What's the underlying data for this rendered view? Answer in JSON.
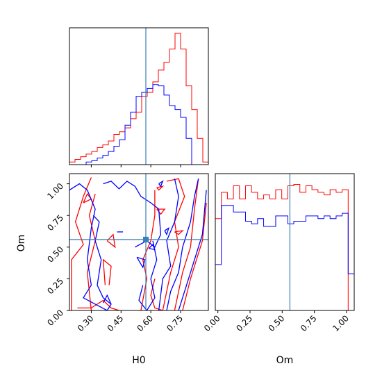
{
  "chart_data": {
    "type": "corner",
    "parameters": [
      "H0",
      "Om"
    ],
    "truths": {
      "H0": 0.575,
      "Om": 0.56
    },
    "truth_color": "#3a7fb5",
    "series": [
      {
        "color": "#ff0000"
      },
      {
        "color": "#0000ff"
      }
    ],
    "hist_H0": {
      "range": [
        0.19,
        0.89
      ],
      "ticks": [
        0.3,
        0.45,
        0.6,
        0.75
      ],
      "red": [
        0.02,
        0.04,
        0.06,
        0.08,
        0.1,
        0.13,
        0.15,
        0.18,
        0.23,
        0.25,
        0.28,
        0.35,
        0.4,
        0.52,
        0.55,
        0.63,
        0.72,
        0.78,
        0.88,
        1.0,
        0.88,
        0.6,
        0.42,
        0.2,
        0.02
      ],
      "blue": [
        0.0,
        0.0,
        0.0,
        0.02,
        0.03,
        0.05,
        0.07,
        0.1,
        0.14,
        0.19,
        0.3,
        0.4,
        0.52,
        0.55,
        0.58,
        0.61,
        0.6,
        0.53,
        0.45,
        0.42,
        0.36,
        0.2,
        0.0,
        0.0,
        0.0
      ]
    },
    "hist_Om": {
      "range": [
        -0.02,
        1.06
      ],
      "ticks": [
        0.0,
        0.25,
        0.5,
        0.75,
        1.0
      ],
      "tick_labels": [
        "0.00",
        "0.25",
        "0.50",
        "0.75",
        "1.00"
      ],
      "red": [
        0.7,
        0.9,
        0.85,
        0.95,
        0.85,
        0.95,
        0.9,
        0.85,
        0.88,
        0.85,
        0.92,
        0.85,
        0.95,
        0.96,
        0.9,
        0.95,
        0.92,
        0.9,
        0.88,
        0.92,
        0.9,
        0.92,
        0.0
      ],
      "blue": [
        0.35,
        0.8,
        0.8,
        0.75,
        0.75,
        0.68,
        0.66,
        0.7,
        0.64,
        0.64,
        0.72,
        0.72,
        0.66,
        0.68,
        0.68,
        0.72,
        0.72,
        0.7,
        0.72,
        0.7,
        0.72,
        0.74,
        0.28
      ]
    },
    "scatter_2d": {
      "xlim": [
        0.19,
        0.89
      ],
      "ylim": [
        0.0,
        1.08
      ],
      "xticks": [
        0.3,
        0.45,
        0.6,
        0.75
      ],
      "xtick_labels": [
        "0.30",
        "0.45",
        "0.60",
        "0.75"
      ],
      "yticks": [
        0.0,
        0.25,
        0.5,
        0.75,
        1.0
      ],
      "ytick_labels": [
        "0.00",
        "0.25",
        "0.50",
        "0.75",
        "1.00"
      ],
      "xlabel": "H0",
      "ylabel": "Om"
    },
    "contours": {
      "red": [
        [
          [
            0.2,
            0.0
          ],
          [
            0.2,
            0.4
          ],
          [
            0.26,
            0.52
          ],
          [
            0.22,
            0.7
          ],
          [
            0.26,
            0.9
          ],
          [
            0.3,
            1.05
          ]
        ],
        [
          [
            0.3,
            0.0
          ],
          [
            0.28,
            0.3
          ],
          [
            0.32,
            0.55
          ],
          [
            0.29,
            0.75
          ],
          [
            0.32,
            0.92
          ]
        ],
        [
          [
            0.23,
            0.02
          ],
          [
            0.3,
            0.02
          ],
          [
            0.36,
            0.08
          ],
          [
            0.4,
            0.02
          ],
          [
            0.44,
            0.0
          ]
        ],
        [
          [
            0.26,
            0.85
          ],
          [
            0.3,
            0.88
          ],
          [
            0.28,
            0.92
          ],
          [
            0.26,
            0.85
          ]
        ],
        [
          [
            0.37,
            0.2
          ],
          [
            0.36,
            0.4
          ],
          [
            0.4,
            0.35
          ],
          [
            0.39,
            0.2
          ]
        ],
        [
          [
            0.38,
            0.55
          ],
          [
            0.42,
            0.5
          ],
          [
            0.41,
            0.6
          ],
          [
            0.38,
            0.55
          ]
        ],
        [
          [
            0.55,
            0.0
          ],
          [
            0.58,
            0.25
          ],
          [
            0.56,
            0.4
          ],
          [
            0.6,
            0.55
          ],
          [
            0.62,
            0.75
          ],
          [
            0.62,
            0.95
          ]
        ],
        [
          [
            0.62,
            0.25
          ],
          [
            0.6,
            0.12
          ],
          [
            0.62,
            0.02
          ],
          [
            0.66,
            0.0
          ]
        ],
        [
          [
            0.68,
            1.02
          ],
          [
            0.74,
            1.04
          ],
          [
            0.77,
            0.9
          ],
          [
            0.72,
            0.7
          ],
          [
            0.74,
            0.5
          ],
          [
            0.7,
            0.3
          ],
          [
            0.66,
            0.0
          ]
        ],
        [
          [
            0.72,
            0.0
          ],
          [
            0.76,
            0.3
          ],
          [
            0.8,
            0.5
          ],
          [
            0.82,
            0.8
          ],
          [
            0.84,
            1.04
          ]
        ],
        [
          [
            0.76,
            0.0
          ],
          [
            0.8,
            0.25
          ],
          [
            0.86,
            0.55
          ],
          [
            0.88,
            0.85
          ]
        ],
        [
          [
            0.63,
            0.97
          ],
          [
            0.66,
            0.98
          ],
          [
            0.64,
            0.95
          ],
          [
            0.63,
            0.97
          ]
        ],
        [
          [
            0.63,
            0.8
          ],
          [
            0.67,
            0.8
          ],
          [
            0.65,
            0.76
          ],
          [
            0.63,
            0.8
          ]
        ],
        [
          [
            0.72,
            0.62
          ],
          [
            0.76,
            0.63
          ],
          [
            0.74,
            0.6
          ],
          [
            0.72,
            0.62
          ]
        ]
      ],
      "blue": [
        [
          [
            0.19,
            0.95
          ],
          [
            0.24,
            1.0
          ],
          [
            0.28,
            0.95
          ],
          [
            0.32,
            0.8
          ],
          [
            0.3,
            0.65
          ],
          [
            0.28,
            0.4
          ],
          [
            0.3,
            0.2
          ],
          [
            0.26,
            0.1
          ],
          [
            0.32,
            0.05
          ],
          [
            0.38,
            0.0
          ]
        ],
        [
          [
            0.31,
            0.75
          ],
          [
            0.34,
            0.7
          ],
          [
            0.32,
            0.55
          ],
          [
            0.35,
            0.4
          ],
          [
            0.33,
            0.2
          ],
          [
            0.36,
            0.1
          ],
          [
            0.4,
            0.05
          ]
        ],
        [
          [
            0.36,
            1.0
          ],
          [
            0.4,
            1.02
          ],
          [
            0.44,
            0.96
          ],
          [
            0.48,
            1.02
          ],
          [
            0.52,
            0.98
          ],
          [
            0.55,
            0.9
          ],
          [
            0.6,
            0.85
          ],
          [
            0.64,
            0.8
          ],
          [
            0.65,
            0.6
          ],
          [
            0.62,
            0.5
          ],
          [
            0.58,
            0.55
          ],
          [
            0.52,
            0.5
          ]
        ],
        [
          [
            0.38,
            0.0
          ],
          [
            0.4,
            0.05
          ],
          [
            0.38,
            0.12
          ],
          [
            0.36,
            0.06
          ]
        ],
        [
          [
            0.43,
            0.62
          ],
          [
            0.46,
            0.62
          ]
        ],
        [
          [
            0.53,
            0.42
          ],
          [
            0.57,
            0.4
          ],
          [
            0.56,
            0.34
          ],
          [
            0.53,
            0.42
          ]
        ],
        [
          [
            0.56,
            0.2
          ],
          [
            0.54,
            0.08
          ],
          [
            0.58,
            0.0
          ],
          [
            0.62,
            0.1
          ],
          [
            0.6,
            0.25
          ],
          [
            0.63,
            0.4
          ],
          [
            0.61,
            0.55
          ]
        ],
        [
          [
            0.64,
            0.0
          ],
          [
            0.66,
            0.25
          ],
          [
            0.7,
            0.35
          ],
          [
            0.68,
            0.55
          ],
          [
            0.72,
            0.7
          ],
          [
            0.74,
            0.9
          ],
          [
            0.72,
            1.04
          ]
        ],
        [
          [
            0.68,
            0.0
          ],
          [
            0.7,
            0.15
          ],
          [
            0.74,
            0.3
          ],
          [
            0.76,
            0.5
          ],
          [
            0.8,
            0.7
          ],
          [
            0.82,
            0.9
          ],
          [
            0.84,
            1.04
          ]
        ],
        [
          [
            0.74,
            0.0
          ],
          [
            0.78,
            0.2
          ],
          [
            0.82,
            0.4
          ],
          [
            0.86,
            0.6
          ],
          [
            0.88,
            0.95
          ]
        ],
        [
          [
            0.67,
            0.63
          ],
          [
            0.69,
            0.65
          ],
          [
            0.68,
            0.6
          ],
          [
            0.67,
            0.63
          ]
        ],
        [
          [
            0.64,
            1.0
          ],
          [
            0.66,
            1.02
          ],
          [
            0.65,
            0.98
          ],
          [
            0.64,
            1.0
          ]
        ],
        [
          [
            0.59,
            0.49
          ],
          [
            0.61,
            0.52
          ],
          [
            0.62,
            0.48
          ],
          [
            0.59,
            0.49
          ]
        ]
      ]
    }
  }
}
